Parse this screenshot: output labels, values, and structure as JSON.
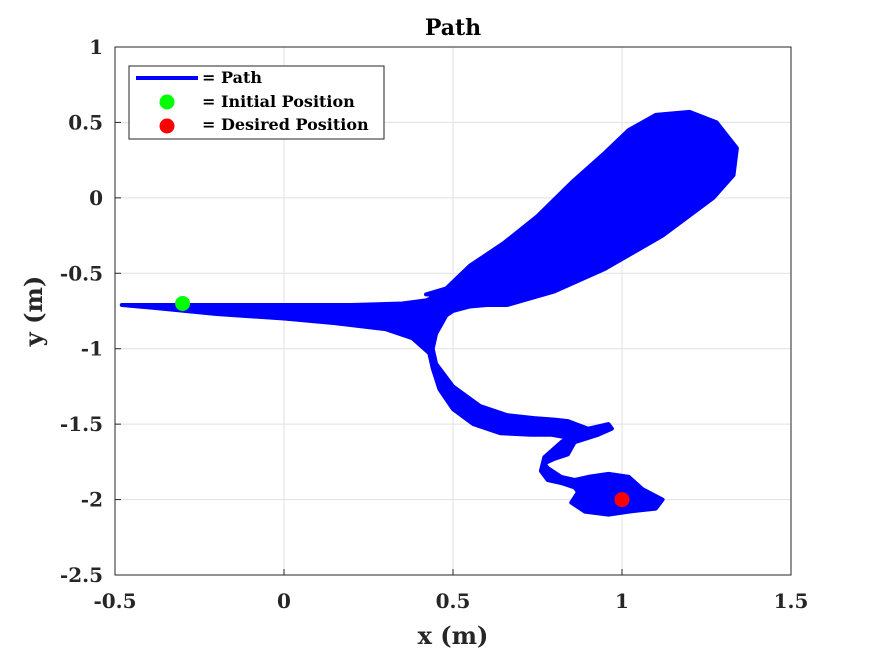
{
  "chart_data": {
    "type": "line",
    "title": "Path",
    "xlabel": "x (m)",
    "ylabel": "y (m)",
    "xlim": [
      -0.5,
      1.5
    ],
    "ylim": [
      -2.5,
      1
    ],
    "xticks": [
      -0.5,
      0,
      0.5,
      1,
      1.5
    ],
    "xtick_labels": [
      "-0.5",
      "0",
      "0.5",
      "1",
      "1.5"
    ],
    "yticks": [
      -2.5,
      -2,
      -1.5,
      -1,
      -0.5,
      0,
      0.5,
      1
    ],
    "ytick_labels": [
      "-2.5",
      "-2",
      "-1.5",
      "-1",
      "-0.5",
      "0",
      "0.5",
      "1"
    ],
    "grid": true,
    "legend_position": "top-left",
    "series": [
      {
        "name": "= Path",
        "kind": "filled-path",
        "color": "#0000ff",
        "x": [
          -0.48,
          -0.3,
          0.0,
          0.2,
          0.35,
          0.42,
          0.44,
          0.43,
          0.42,
          0.48,
          0.55,
          0.65,
          0.75,
          0.85,
          0.95,
          1.02,
          1.1,
          1.2,
          1.28,
          1.34,
          1.33,
          1.27,
          1.12,
          0.95,
          0.8,
          0.66,
          0.6,
          0.55,
          0.5,
          0.48,
          0.47,
          0.45,
          0.44,
          0.45,
          0.5,
          0.58,
          0.66,
          0.74,
          0.8,
          0.84,
          0.9,
          0.96,
          0.97,
          0.93,
          0.86,
          0.84,
          0.8,
          0.77,
          0.78,
          0.82,
          0.86,
          0.9,
          0.96,
          1.02,
          1.06,
          1.12,
          1.1,
          1.02,
          0.96,
          0.89,
          0.85,
          0.87,
          0.86,
          0.82,
          0.78,
          0.76,
          0.77,
          0.82,
          0.84,
          0.79,
          0.73,
          0.64,
          0.56,
          0.5,
          0.46,
          0.44,
          0.43,
          0.38,
          0.3,
          0.15,
          0.0,
          -0.2,
          -0.38,
          -0.48
        ],
        "y": [
          -0.71,
          -0.71,
          -0.71,
          -0.71,
          -0.7,
          -0.68,
          -0.66,
          -0.64,
          -0.64,
          -0.6,
          -0.45,
          -0.3,
          -0.12,
          0.1,
          0.3,
          0.45,
          0.55,
          0.57,
          0.5,
          0.33,
          0.15,
          0.0,
          -0.25,
          -0.47,
          -0.62,
          -0.71,
          -0.71,
          -0.72,
          -0.75,
          -0.78,
          -0.82,
          -0.9,
          -1.0,
          -1.1,
          -1.25,
          -1.38,
          -1.44,
          -1.46,
          -1.47,
          -1.48,
          -1.53,
          -1.5,
          -1.53,
          -1.57,
          -1.62,
          -1.7,
          -1.73,
          -1.76,
          -1.79,
          -1.85,
          -1.87,
          -1.85,
          -1.83,
          -1.85,
          -1.93,
          -2.0,
          -2.06,
          -2.08,
          -2.1,
          -2.08,
          -2.02,
          -1.95,
          -1.92,
          -1.89,
          -1.87,
          -1.81,
          -1.72,
          -1.62,
          -1.59,
          -1.57,
          -1.57,
          -1.56,
          -1.5,
          -1.4,
          -1.27,
          -1.13,
          -1.03,
          -0.93,
          -0.87,
          -0.83,
          -0.8,
          -0.77,
          -0.73,
          -0.71
        ]
      }
    ],
    "points": [
      {
        "name": "= Initial Position",
        "x": -0.3,
        "y": -0.7,
        "color": "#00ff00"
      },
      {
        "name": "= Desired Position",
        "x": 1.0,
        "y": -2.0,
        "color": "#ff0000"
      }
    ]
  }
}
